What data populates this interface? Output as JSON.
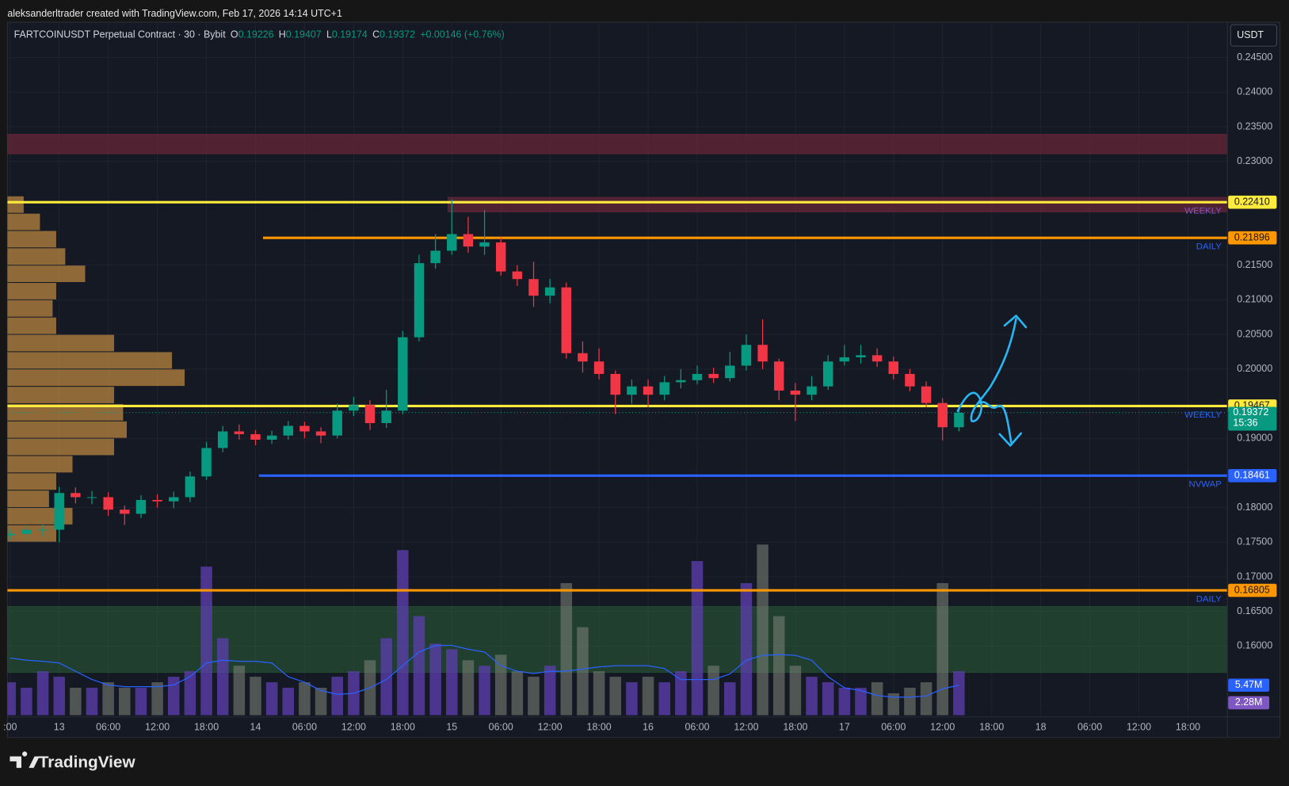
{
  "header": {
    "attribution": "aleksanderltrader created with TradingView.com, Feb 17, 2026 14:14 UTC+1"
  },
  "footer": {
    "brand": "TradingView"
  },
  "chart_data": {
    "type": "candlestick",
    "title": "FARTCOINUSDT Perpetual Contract · 30 · Bybit",
    "ohlc_legend": [
      {
        "key": "O",
        "value": "0.19226"
      },
      {
        "key": "H",
        "value": "0.19407"
      },
      {
        "key": "L",
        "value": "0.19174"
      },
      {
        "key": "C",
        "value": "0.19372"
      }
    ],
    "change": "+0.00146 (+0.76%)",
    "currency": "USDT",
    "categories": [
      ":00",
      null,
      null,
      "13",
      null,
      null,
      "06:00",
      null,
      null,
      "12:00",
      null,
      null,
      "18:00",
      null,
      null,
      "14",
      null,
      null,
      "06:00",
      null,
      null,
      "12:00",
      null,
      null,
      "18:00",
      null,
      null,
      "15",
      null,
      null,
      "06:00",
      null,
      null,
      "12:00",
      null,
      null,
      "18:00",
      null,
      null,
      "16",
      null,
      null,
      "06:00",
      null,
      null,
      "12:00",
      null,
      null,
      "18:00",
      null,
      null,
      "17",
      null,
      null,
      "06:00",
      null,
      null,
      "12:00",
      null,
      null,
      "18:00",
      null,
      null,
      "18",
      null,
      null,
      "06:00",
      null,
      null,
      "12:00",
      null,
      null,
      "18:00",
      null,
      null
    ],
    "open": [
      0.176,
      0.1762,
      0.1768,
      0.1768,
      0.1821,
      0.1815,
      0.1815,
      0.1797,
      0.1791,
      0.1811,
      0.1809,
      0.1815,
      0.1845,
      0.1886,
      0.191,
      0.1906,
      0.1898,
      0.1904,
      0.1918,
      0.191,
      0.1904,
      0.194,
      0.1948,
      0.1922,
      0.194,
      0.2046,
      0.2153,
      0.2171,
      0.2195,
      0.2177,
      0.2183,
      0.2141,
      0.213,
      0.2106,
      0.2118,
      0.2023,
      0.2011,
      0.1993,
      0.1963,
      0.1975,
      0.1963,
      0.1981,
      0.1984,
      0.1993,
      0.1987,
      0.2005,
      0.2035,
      0.2011,
      0.1969,
      0.1963,
      0.1975,
      0.2011,
      0.2017,
      0.202,
      0.2011,
      0.1993,
      0.1975,
      0.1951,
      0.1916,
      null,
      null,
      null,
      null,
      null,
      null,
      null,
      null,
      null,
      null,
      null,
      null,
      null,
      null,
      null,
      null
    ],
    "high": [
      0.1769,
      0.1775,
      0.1776,
      0.183,
      0.1829,
      0.1824,
      0.1822,
      0.1803,
      0.1818,
      0.1819,
      0.1823,
      0.1852,
      0.1895,
      0.1918,
      0.192,
      0.1912,
      0.1911,
      0.1925,
      0.1924,
      0.1916,
      0.195,
      0.196,
      0.1955,
      0.197,
      0.2055,
      0.2165,
      0.2195,
      0.2245,
      0.222,
      0.223,
      0.219,
      0.215,
      0.2155,
      0.213,
      0.2125,
      0.204,
      0.203,
      0.1998,
      0.1985,
      0.1985,
      0.199,
      0.2,
      0.2005,
      0.2002,
      0.2025,
      0.205,
      0.2072,
      0.2015,
      0.198,
      0.199,
      0.202,
      0.2035,
      0.2035,
      0.203,
      0.2018,
      0.2,
      0.1982,
      0.1958,
      0.1941,
      null,
      null,
      null,
      null,
      null,
      null,
      null,
      null,
      null,
      null,
      null,
      null,
      null,
      null,
      null,
      null
    ],
    "low": [
      0.1753,
      0.1755,
      0.1758,
      0.175,
      0.1806,
      0.1805,
      0.1788,
      0.1775,
      0.1785,
      0.18,
      0.1799,
      0.1808,
      0.184,
      0.188,
      0.1898,
      0.189,
      0.1892,
      0.1898,
      0.19,
      0.1893,
      0.19,
      0.1932,
      0.1912,
      0.1915,
      0.1935,
      0.204,
      0.2145,
      0.2165,
      0.2168,
      0.2165,
      0.2135,
      0.212,
      0.209,
      0.2095,
      0.2015,
      0.1995,
      0.1985,
      0.1935,
      0.195,
      0.1945,
      0.1955,
      0.1972,
      0.1978,
      0.198,
      0.1982,
      0.1998,
      0.2,
      0.1955,
      0.1925,
      0.1955,
      0.197,
      0.2005,
      0.2008,
      0.2003,
      0.1985,
      0.1968,
      0.1945,
      0.1897,
      0.191,
      null,
      null,
      null,
      null,
      null,
      null,
      null,
      null,
      null,
      null,
      null,
      null,
      null,
      null,
      null,
      null
    ],
    "close": [
      0.1762,
      0.1768,
      0.1768,
      0.1821,
      0.1815,
      0.1815,
      0.1797,
      0.1791,
      0.1811,
      0.1809,
      0.1815,
      0.1845,
      0.1886,
      0.191,
      0.1906,
      0.1898,
      0.1904,
      0.1918,
      0.191,
      0.1904,
      0.194,
      0.1948,
      0.1922,
      0.194,
      0.2046,
      0.2153,
      0.2171,
      0.2195,
      0.2177,
      0.2183,
      0.2141,
      0.213,
      0.2106,
      0.2118,
      0.2023,
      0.2011,
      0.1993,
      0.1963,
      0.1975,
      0.1963,
      0.1981,
      0.1984,
      0.1993,
      0.1987,
      0.2005,
      0.2035,
      0.2011,
      0.1969,
      0.1963,
      0.1975,
      0.2011,
      0.2017,
      0.202,
      0.2011,
      0.1993,
      0.1975,
      0.1951,
      0.1916,
      0.1937,
      null,
      null,
      null,
      null,
      null,
      null,
      null,
      null,
      null,
      null,
      null,
      null,
      null,
      null,
      null,
      null
    ],
    "up_color": "#089981",
    "down_color": "#f23645",
    "ylim": [
      0.15,
      0.2501
    ],
    "yticks": [
      {
        "value": 0.245,
        "label": "0.24500"
      },
      {
        "value": 0.24,
        "label": "0.24000"
      },
      {
        "value": 0.235,
        "label": "0.23500"
      },
      {
        "value": 0.23,
        "label": "0.23000"
      },
      {
        "value": 0.215,
        "label": "0.21500"
      },
      {
        "value": 0.21,
        "label": "0.21000"
      },
      {
        "value": 0.205,
        "label": "0.20500"
      },
      {
        "value": 0.2,
        "label": "0.20000"
      },
      {
        "value": 0.19,
        "label": "0.19000"
      },
      {
        "value": 0.18,
        "label": "0.18000"
      },
      {
        "value": 0.175,
        "label": "0.17500"
      },
      {
        "value": 0.17,
        "label": "0.17000"
      },
      {
        "value": 0.165,
        "label": "0.16500"
      },
      {
        "value": 0.16,
        "label": "0.16000"
      }
    ],
    "grid": true,
    "volume": {
      "values": [
        6,
        5,
        8,
        7,
        5,
        5,
        6,
        5,
        5,
        6,
        7,
        8,
        27,
        14,
        9,
        7,
        6,
        5,
        6,
        5,
        7,
        8,
        10,
        14,
        30,
        18,
        13,
        12,
        10,
        9,
        11,
        8,
        7,
        9,
        24,
        16,
        8,
        7,
        6,
        7,
        6,
        8,
        28,
        9,
        6,
        24,
        31,
        18,
        9,
        7,
        6,
        5,
        5,
        6,
        4,
        5,
        6,
        24,
        8,
        null,
        null,
        null,
        null,
        null,
        null,
        null,
        null,
        null,
        null,
        null,
        null,
        null,
        null,
        null,
        null
      ],
      "ma": [
        10.4,
        10,
        9.8,
        9.5,
        8,
        6.5,
        5.5,
        5.2,
        5.2,
        5.2,
        5.5,
        7,
        9.5,
        10,
        9.8,
        9.8,
        9.5,
        7,
        6,
        4.5,
        3.8,
        4,
        5,
        6.5,
        9,
        11.5,
        12.7,
        12.7,
        12,
        11.5,
        9,
        8,
        7.6,
        8,
        8,
        8.4,
        8.8,
        9,
        9,
        9,
        8.5,
        6.5,
        6.5,
        6.5,
        7.5,
        10,
        10.9,
        11,
        10.9,
        10,
        7,
        5,
        4.5,
        3.6,
        3.3,
        3.3,
        3.5,
        4.8,
        5.47,
        null,
        null,
        null,
        null,
        null,
        null,
        null,
        null,
        null,
        null,
        null,
        null,
        null,
        null,
        null,
        null
      ],
      "ylim": [
        0,
        31.5
      ],
      "up_color": "rgba(94,63,178,0.75)",
      "down_color": "rgba(120,125,115,0.6)",
      "ma_color": "#2962ff",
      "markers": [
        {
          "value": 5.47,
          "label": "5.47M",
          "color": "#2962ff"
        },
        {
          "value": 2.28,
          "label": "2.28M",
          "color": "#7e57c2"
        }
      ]
    },
    "volume_profile": {
      "prices": [
        0.1762,
        0.1787,
        0.1812,
        0.1837,
        0.1862,
        0.1887,
        0.1912,
        0.1937,
        0.1962,
        0.1987,
        0.2012,
        0.2037,
        0.2062,
        0.2087,
        0.2112,
        0.2137,
        0.2162,
        0.2187,
        0.2212,
        0.2237
      ],
      "values": [
        27,
        36,
        23,
        27,
        36,
        59,
        66,
        64,
        59,
        98,
        91,
        59,
        27,
        25,
        27,
        43,
        32,
        27,
        18,
        9
      ],
      "xlim": [
        0,
        100
      ],
      "color": "rgba(225,160,70,0.6)"
    },
    "levels": [
      {
        "price": 0.2241,
        "label": "0.22410",
        "tag": "WEEKLY",
        "color": "#ffeb3b",
        "text_color": "#131722",
        "tag_color": "#7e57c2"
      },
      {
        "price": 0.21896,
        "label": "0.21896",
        "tag": "DAILY",
        "color": "#ff9800",
        "text_color": "#131722",
        "tag_color": "#2962ff"
      },
      {
        "price": 0.19467,
        "label": "0.19467",
        "tag": "WEEKLY",
        "color": "#ffeb3b",
        "text_color": "#131722",
        "tag_color": "#2962ff"
      },
      {
        "price": 0.18461,
        "label": "0.18461",
        "tag": "NVWAP",
        "color": "#2962ff",
        "text_color": "#ffffff",
        "tag_color": "#2962ff"
      },
      {
        "price": 0.16805,
        "label": "0.16805",
        "tag": "DAILY",
        "color": "#ff9800",
        "text_color": "#131722",
        "tag_color": "#2962ff"
      }
    ],
    "zones": [
      {
        "from": 0.2311,
        "to": 0.2339,
        "color": "rgba(120,40,60,0.6)"
      },
      {
        "from": 0.2227,
        "to": 0.2248,
        "color": "rgba(120,40,60,0.6)"
      },
      {
        "from": 0.1562,
        "to": 0.1657,
        "color": "rgba(46,110,60,0.45)"
      }
    ],
    "last_price": {
      "value": 0.19372,
      "label": "0.19372",
      "countdown": "15:36",
      "color": "#089981"
    }
  }
}
